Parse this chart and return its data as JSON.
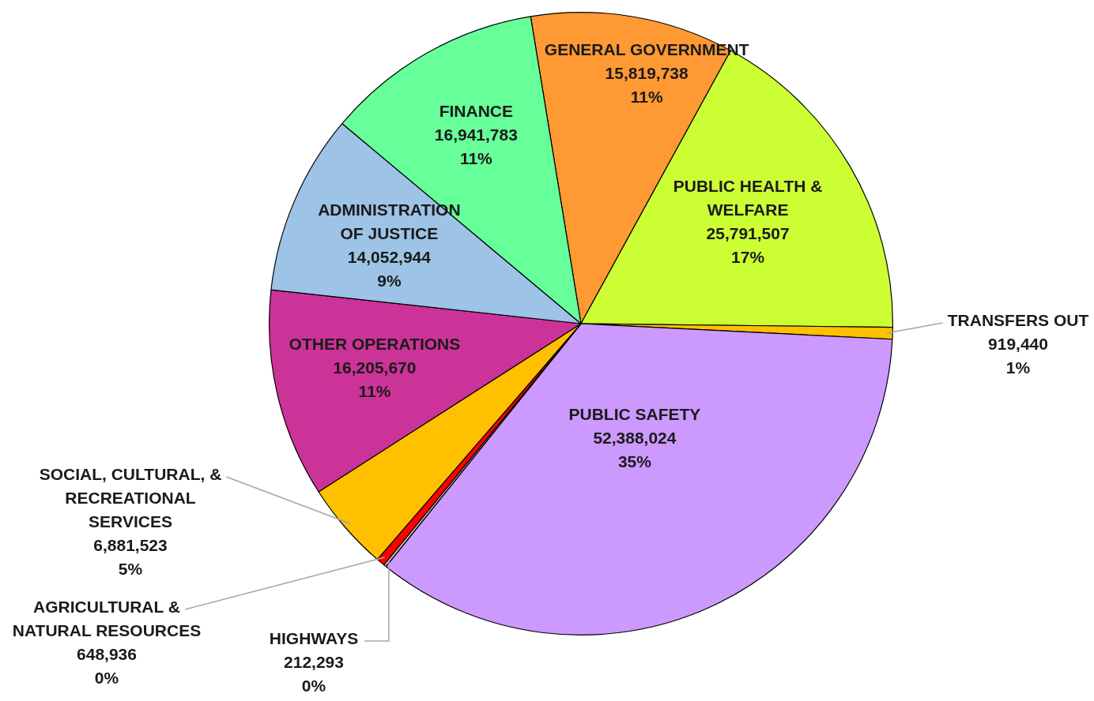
{
  "chart_data": {
    "type": "pie",
    "categories": [
      "GENERAL GOVERNMENT",
      "PUBLIC HEALTH & WELFARE",
      "TRANSFERS OUT",
      "PUBLIC SAFETY",
      "HIGHWAYS",
      "AGRICULTURAL & NATURAL RESOURCES",
      "SOCIAL, CULTURAL, & RECREATIONAL SERVICES",
      "OTHER OPERATIONS",
      "ADMINISTRATION OF JUSTICE",
      "FINANCE"
    ],
    "values": [
      15819738,
      25791507,
      919440,
      52388024,
      212293,
      648936,
      6881523,
      16205670,
      14052944,
      16941783
    ],
    "colors": [
      "#ff9933",
      "#ccff33",
      "#ffc000",
      "#cc99ff",
      "#bfbfbf",
      "#ff0000",
      "#ffc000",
      "#cc3399",
      "#9dc3e6",
      "#66ff99"
    ],
    "value_labels": [
      "15,819,738\n11%",
      "25,791,507\n17%",
      "919,440\n1%",
      "52,388,024\n35%",
      "212,293\n0%",
      "648,936\n0%",
      "6,881,523\n5%",
      "16,205,670\n11%",
      "14,052,944\n9%",
      "16,941,783\n11%"
    ],
    "legend": false
  }
}
